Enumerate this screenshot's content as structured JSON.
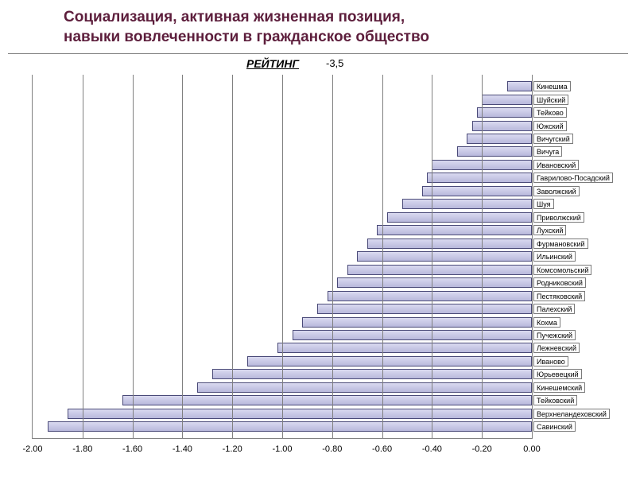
{
  "title_line1": "Социализация, активная жизненная позиция,",
  "title_line2": "навыки вовлеченности в гражданское общество",
  "chart": {
    "type": "bar-horizontal",
    "rating_label": "РЕЙТИНГ",
    "annotation": "-3,5",
    "x_min": -2.0,
    "x_max": 0.0,
    "x_ticks": [
      -2.0,
      -1.8,
      -1.6,
      -1.4,
      -1.2,
      -1.0,
      -0.8,
      -0.6,
      -0.4,
      -0.2,
      0.0
    ],
    "bar_fill_top": "#dadaf0",
    "bar_fill_bottom": "#b8b8dc",
    "bar_border": "#4a4a78",
    "grid_color": "#808080",
    "background": "#ffffff",
    "label_fontsize": 9,
    "axis_fontsize": 11,
    "series": [
      {
        "label": "Кинешма",
        "value": -0.1
      },
      {
        "label": "Шуйский",
        "value": -0.2
      },
      {
        "label": "Тейково",
        "value": -0.22
      },
      {
        "label": "Южский",
        "value": -0.24
      },
      {
        "label": "Вичугский",
        "value": -0.26
      },
      {
        "label": "Вичуга",
        "value": -0.3
      },
      {
        "label": "Ивановский",
        "value": -0.4
      },
      {
        "label": "Гаврилово-Посадский",
        "value": -0.42
      },
      {
        "label": "Заволжский",
        "value": -0.44
      },
      {
        "label": "Шуя",
        "value": -0.52
      },
      {
        "label": "Приволжский",
        "value": -0.58
      },
      {
        "label": "Лухский",
        "value": -0.62
      },
      {
        "label": "Фурмановский",
        "value": -0.66
      },
      {
        "label": "Ильинский",
        "value": -0.7
      },
      {
        "label": "Комсомольский",
        "value": -0.74
      },
      {
        "label": "Родниковский",
        "value": -0.78
      },
      {
        "label": "Пестяковский",
        "value": -0.82
      },
      {
        "label": "Палехский",
        "value": -0.86
      },
      {
        "label": "Кохма",
        "value": -0.92
      },
      {
        "label": "Пучежский",
        "value": -0.96
      },
      {
        "label": "Лежневский",
        "value": -1.02
      },
      {
        "label": "Иваново",
        "value": -1.14
      },
      {
        "label": "Юрьевецкий",
        "value": -1.28
      },
      {
        "label": "Кинешемский",
        "value": -1.34
      },
      {
        "label": "Тейковский",
        "value": -1.64
      },
      {
        "label": "Верхнеландеховский",
        "value": -1.86
      },
      {
        "label": "Савинский",
        "value": -1.94
      }
    ]
  }
}
